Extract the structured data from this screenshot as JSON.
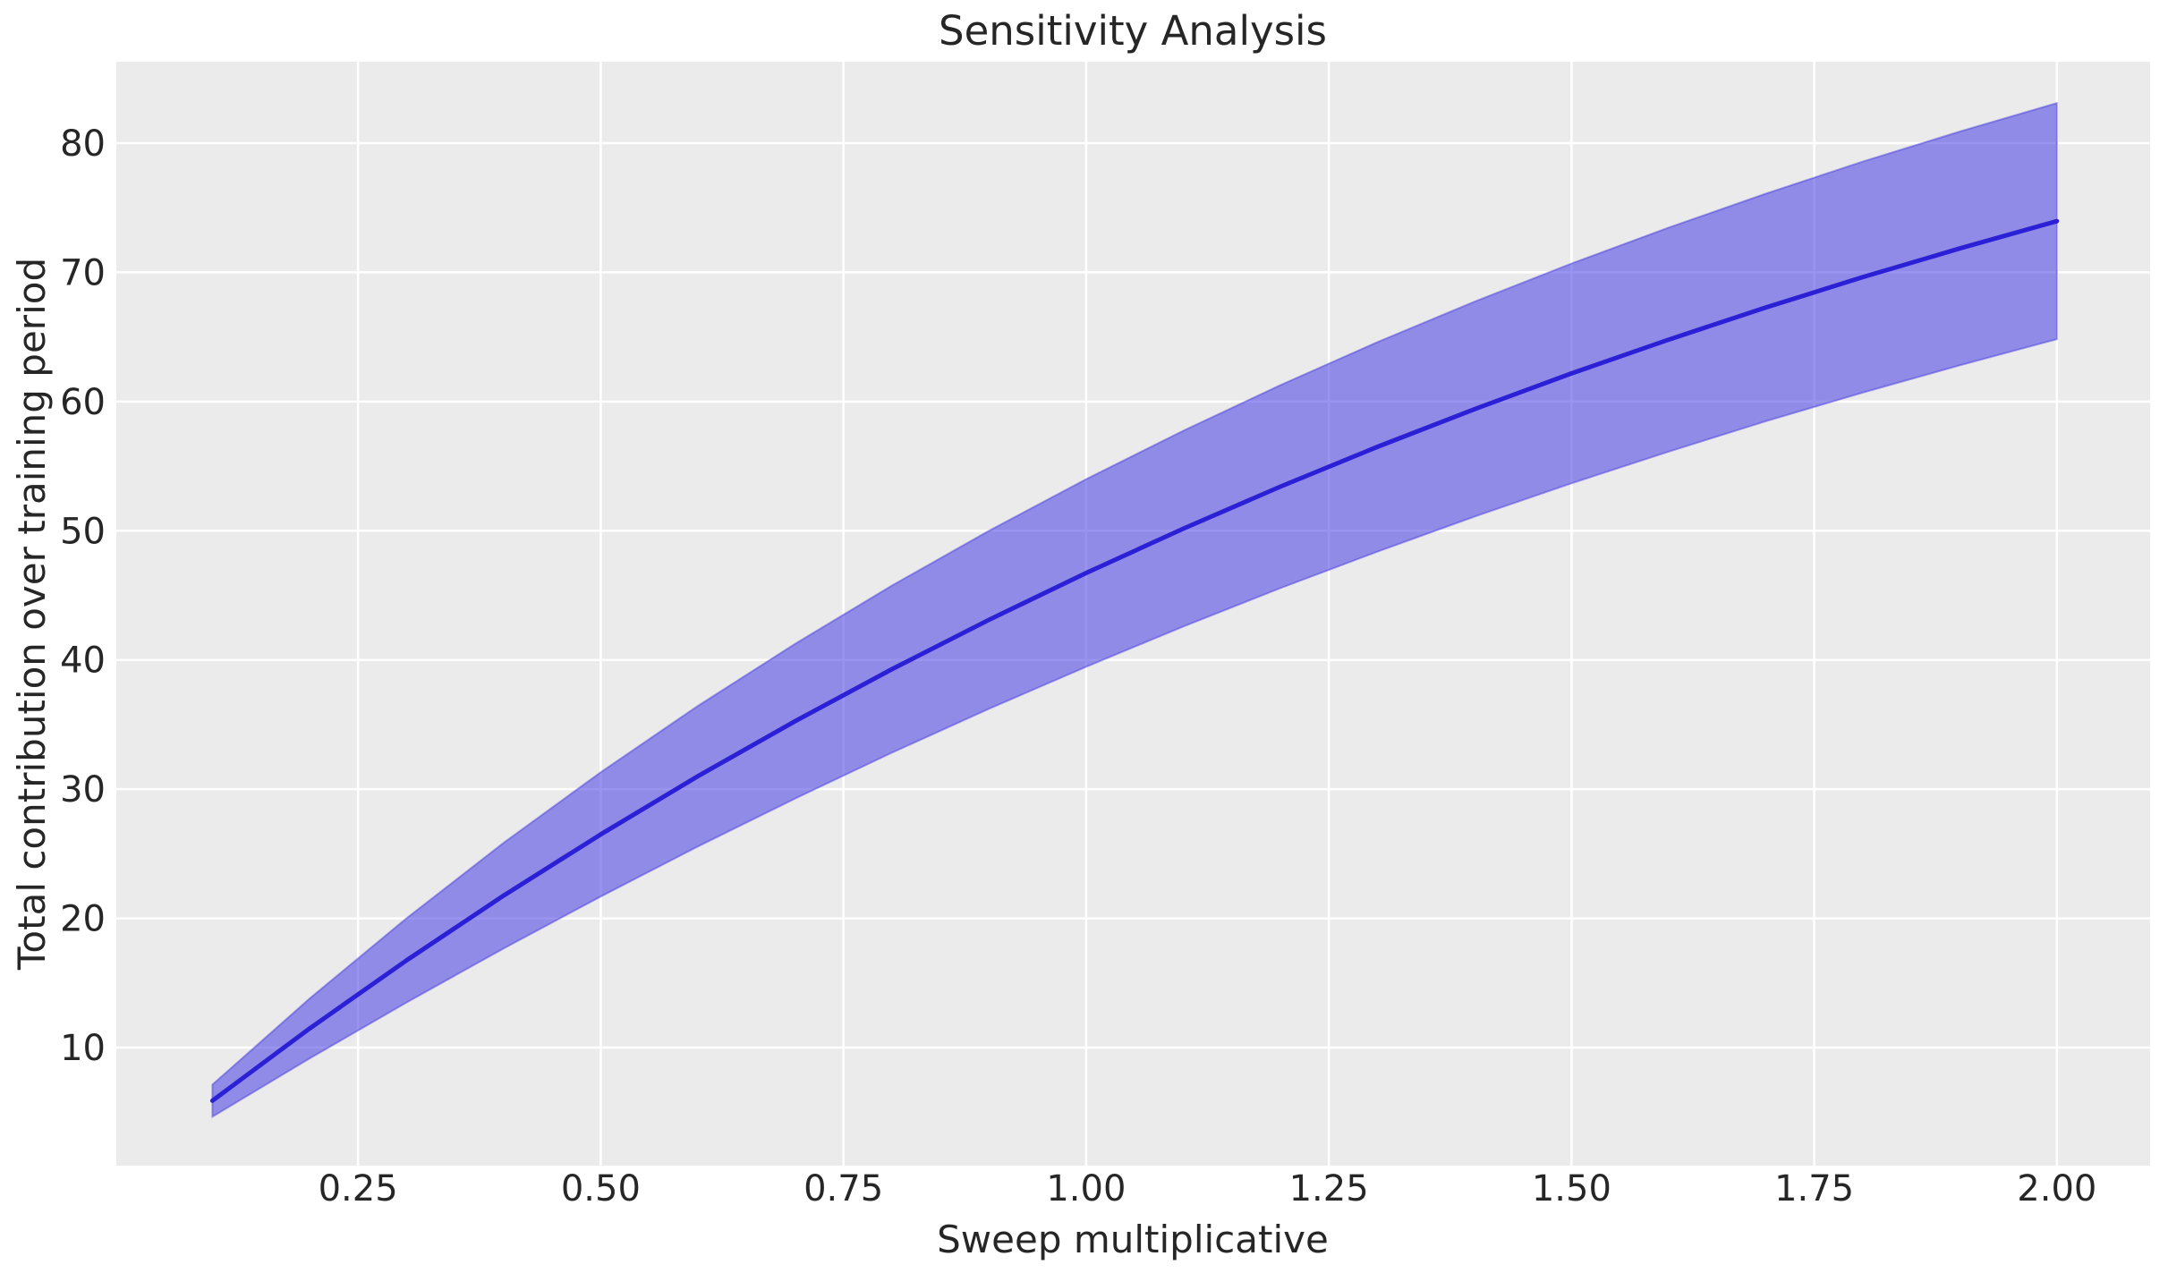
{
  "chart_data": {
    "type": "line",
    "title": "Sensitivity Analysis",
    "xlabel": "Sweep multiplicative",
    "ylabel": "Total contribution over training period",
    "x": [
      0.1,
      0.2,
      0.3,
      0.4,
      0.5,
      0.6,
      0.7,
      0.8,
      0.9,
      1.0,
      1.1,
      1.2,
      1.3,
      1.4,
      1.5,
      1.6,
      1.7,
      1.8,
      1.9,
      2.0
    ],
    "series": [
      {
        "name": "mean",
        "values": [
          5.89,
          11.47,
          16.75,
          21.76,
          26.5,
          31.0,
          35.25,
          39.29,
          43.11,
          46.73,
          50.16,
          53.41,
          56.49,
          59.41,
          62.18,
          64.79,
          67.28,
          69.63,
          71.85,
          73.96
        ]
      }
    ],
    "band": {
      "name": "confidence-interval",
      "lower": [
        4.65,
        9.15,
        13.49,
        17.67,
        21.69,
        25.56,
        29.26,
        32.82,
        36.22,
        39.47,
        42.58,
        45.55,
        48.38,
        51.09,
        53.67,
        56.12,
        58.47,
        60.69,
        62.8,
        64.82
      ],
      "upper": [
        7.13,
        13.79,
        20.01,
        25.85,
        31.31,
        36.44,
        41.24,
        45.76,
        50.0,
        53.99,
        57.74,
        61.27,
        64.6,
        67.73,
        70.69,
        73.46,
        76.09,
        78.57,
        80.9,
        83.1
      ]
    },
    "xlim": [
      0.001,
      2.096
    ],
    "ylim": [
      0.86,
      86.3
    ],
    "xticks": {
      "values": [
        0.25,
        0.5,
        0.75,
        1.0,
        1.25,
        1.5,
        1.75,
        2.0
      ],
      "labels": [
        "0.25",
        "0.50",
        "0.75",
        "1.00",
        "1.25",
        "1.50",
        "1.75",
        "2.00"
      ]
    },
    "yticks": {
      "values": [
        10,
        20,
        30,
        40,
        50,
        60,
        70,
        80
      ],
      "labels": [
        "10",
        "20",
        "30",
        "40",
        "50",
        "60",
        "70",
        "80"
      ]
    },
    "grid": true,
    "legend": false,
    "colors": {
      "line": "#2b20d6",
      "band_fill": "rgba(70,60,225,0.55)",
      "band_edge": "rgba(62,50,220,0.45)",
      "plot_bg": "#ebebeb",
      "grid": "#ffffff",
      "text": "#262626",
      "figure_bg": "#ffffff"
    }
  }
}
